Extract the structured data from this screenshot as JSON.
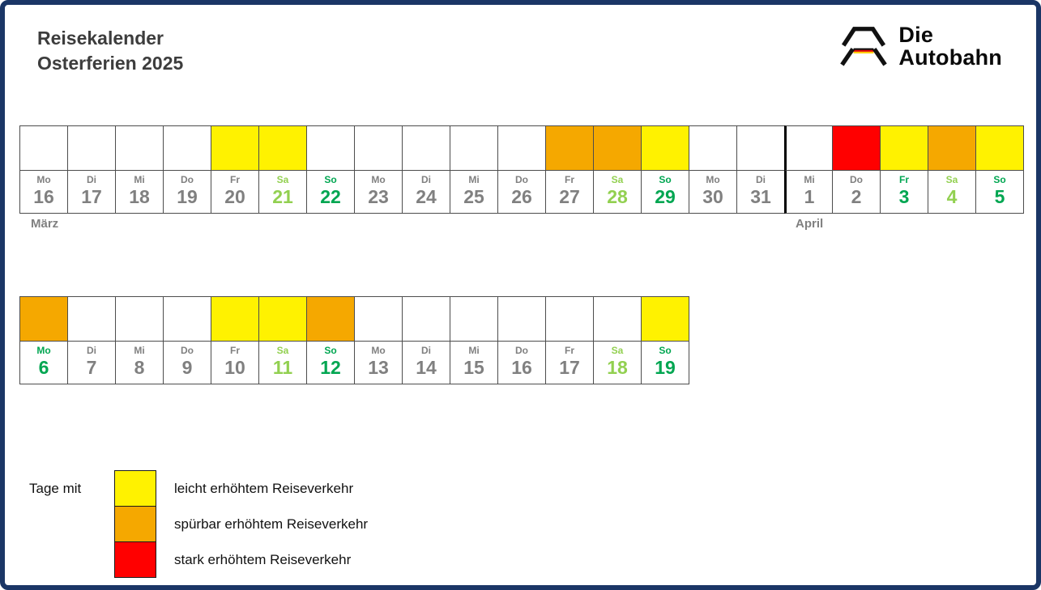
{
  "header": {
    "title_line1": "Reisekalender",
    "title_line2": "Osterferien 2025"
  },
  "logo": {
    "line1": "Die",
    "line2": "Autobahn",
    "flag_colors": [
      "#000000",
      "#dd0000",
      "#ffce00"
    ]
  },
  "colors": {
    "yellow": "#FFF200",
    "orange": "#F5A800",
    "red": "#FF0000",
    "weekday_grey": "#808080",
    "saturday_green": "#92D050",
    "sunday_green": "#00A651",
    "frame_blue": "#1B3666"
  },
  "calendar": {
    "rows": [
      {
        "cells": [
          {
            "weekday": "Mo",
            "day": "16",
            "traffic": "none",
            "label_color": "grey"
          },
          {
            "weekday": "Di",
            "day": "17",
            "traffic": "none",
            "label_color": "grey"
          },
          {
            "weekday": "Mi",
            "day": "18",
            "traffic": "none",
            "label_color": "grey"
          },
          {
            "weekday": "Do",
            "day": "19",
            "traffic": "none",
            "label_color": "grey"
          },
          {
            "weekday": "Fr",
            "day": "20",
            "traffic": "light",
            "label_color": "grey"
          },
          {
            "weekday": "Sa",
            "day": "21",
            "traffic": "light",
            "label_color": "saturday"
          },
          {
            "weekday": "So",
            "day": "22",
            "traffic": "none",
            "label_color": "sunday"
          },
          {
            "weekday": "Mo",
            "day": "23",
            "traffic": "none",
            "label_color": "grey"
          },
          {
            "weekday": "Di",
            "day": "24",
            "traffic": "none",
            "label_color": "grey"
          },
          {
            "weekday": "Mi",
            "day": "25",
            "traffic": "none",
            "label_color": "grey"
          },
          {
            "weekday": "Do",
            "day": "26",
            "traffic": "none",
            "label_color": "grey"
          },
          {
            "weekday": "Fr",
            "day": "27",
            "traffic": "noticeable",
            "label_color": "grey"
          },
          {
            "weekday": "Sa",
            "day": "28",
            "traffic": "noticeable",
            "label_color": "saturday"
          },
          {
            "weekday": "So",
            "day": "29",
            "traffic": "light",
            "label_color": "sunday"
          },
          {
            "weekday": "Mo",
            "day": "30",
            "traffic": "none",
            "label_color": "grey"
          },
          {
            "weekday": "Di",
            "day": "31",
            "traffic": "none",
            "label_color": "grey"
          },
          {
            "weekday": "Mi",
            "day": "1",
            "traffic": "none",
            "label_color": "grey",
            "month_start": true
          },
          {
            "weekday": "Do",
            "day": "2",
            "traffic": "heavy",
            "label_color": "grey"
          },
          {
            "weekday": "Fr",
            "day": "3",
            "traffic": "light",
            "label_color": "sunday"
          },
          {
            "weekday": "Sa",
            "day": "4",
            "traffic": "noticeable",
            "label_color": "saturday"
          },
          {
            "weekday": "So",
            "day": "5",
            "traffic": "light",
            "label_color": "sunday"
          }
        ],
        "month_labels": [
          {
            "text": "März",
            "cell_index": 0
          },
          {
            "text": "April",
            "cell_index": 16
          }
        ]
      },
      {
        "cells": [
          {
            "weekday": "Mo",
            "day": "6",
            "traffic": "noticeable",
            "label_color": "sunday"
          },
          {
            "weekday": "Di",
            "day": "7",
            "traffic": "none",
            "label_color": "grey"
          },
          {
            "weekday": "Mi",
            "day": "8",
            "traffic": "none",
            "label_color": "grey"
          },
          {
            "weekday": "Do",
            "day": "9",
            "traffic": "none",
            "label_color": "grey"
          },
          {
            "weekday": "Fr",
            "day": "10",
            "traffic": "light",
            "label_color": "grey"
          },
          {
            "weekday": "Sa",
            "day": "11",
            "traffic": "light",
            "label_color": "saturday"
          },
          {
            "weekday": "So",
            "day": "12",
            "traffic": "noticeable",
            "label_color": "sunday"
          },
          {
            "weekday": "Mo",
            "day": "13",
            "traffic": "none",
            "label_color": "grey"
          },
          {
            "weekday": "Di",
            "day": "14",
            "traffic": "none",
            "label_color": "grey"
          },
          {
            "weekday": "Mi",
            "day": "15",
            "traffic": "none",
            "label_color": "grey"
          },
          {
            "weekday": "Do",
            "day": "16",
            "traffic": "none",
            "label_color": "grey"
          },
          {
            "weekday": "Fr",
            "day": "17",
            "traffic": "none",
            "label_color": "grey"
          },
          {
            "weekday": "Sa",
            "day": "18",
            "traffic": "none",
            "label_color": "saturday"
          },
          {
            "weekday": "So",
            "day": "19",
            "traffic": "light",
            "label_color": "sunday"
          }
        ],
        "month_labels": []
      }
    ]
  },
  "legend": {
    "title": "Tage mit",
    "items": [
      {
        "traffic": "light",
        "label": "leicht erhöhtem Reiseverkehr"
      },
      {
        "traffic": "noticeable",
        "label": "spürbar erhöhtem Reiseverkehr"
      },
      {
        "traffic": "heavy",
        "label": "stark erhöhtem Reiseverkehr"
      }
    ]
  }
}
